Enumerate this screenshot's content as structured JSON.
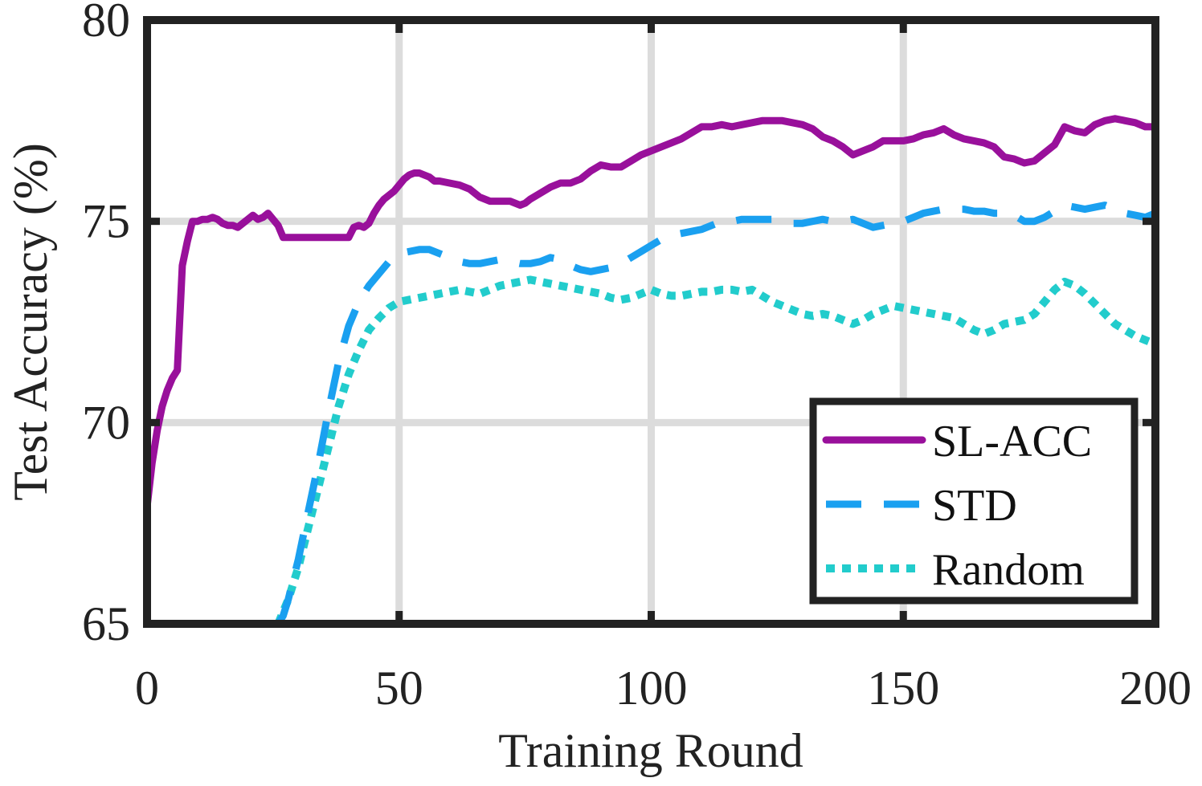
{
  "chart_data": {
    "type": "line",
    "title": "",
    "xlabel": "Training Round",
    "ylabel": "Test Accuracy (%)",
    "xlim": [
      0,
      200
    ],
    "ylim": [
      65,
      80
    ],
    "xticks": [
      0,
      50,
      100,
      150,
      200
    ],
    "yticks": [
      65,
      70,
      75,
      80
    ],
    "xtick_labels": [
      "0",
      "50",
      "100",
      "150",
      "200"
    ],
    "ytick_labels": [
      "65",
      "70",
      "75",
      "80"
    ],
    "grid": true,
    "legend_position": "bottom-right",
    "series": [
      {
        "name": "SL-ACC",
        "color": "#99109b",
        "style": "solid",
        "x": [
          0,
          1,
          2,
          3,
          4,
          5,
          6,
          7,
          8,
          9,
          10,
          11,
          12,
          13,
          14,
          15,
          16,
          17,
          18,
          19,
          20,
          21,
          22,
          23,
          24,
          25,
          26,
          27,
          28,
          29,
          30,
          32,
          34,
          36,
          38,
          40,
          41,
          42,
          43,
          44,
          45,
          46,
          47,
          48,
          49,
          50,
          51,
          52,
          53,
          54,
          55,
          56,
          57,
          58,
          60,
          62,
          64,
          66,
          68,
          70,
          72,
          74,
          75,
          76,
          78,
          80,
          82,
          84,
          86,
          88,
          90,
          92,
          94,
          96,
          98,
          100,
          102,
          104,
          106,
          108,
          110,
          112,
          114,
          116,
          118,
          120,
          122,
          124,
          126,
          128,
          130,
          132,
          134,
          136,
          138,
          140,
          142,
          144,
          146,
          148,
          150,
          152,
          154,
          156,
          158,
          160,
          162,
          164,
          166,
          168,
          170,
          172,
          174,
          176,
          178,
          180,
          182,
          184,
          186,
          188,
          190,
          192,
          194,
          196,
          198,
          200
        ],
        "values": [
          67.9,
          69.0,
          69.8,
          70.4,
          70.8,
          71.1,
          71.3,
          73.9,
          74.5,
          75.0,
          75.0,
          75.05,
          75.05,
          75.1,
          75.05,
          74.95,
          74.9,
          74.9,
          74.85,
          74.95,
          75.05,
          75.15,
          75.05,
          75.1,
          75.2,
          75.05,
          74.9,
          74.6,
          74.6,
          74.6,
          74.6,
          74.6,
          74.6,
          74.6,
          74.6,
          74.6,
          74.85,
          74.9,
          74.85,
          74.95,
          75.2,
          75.4,
          75.55,
          75.65,
          75.75,
          75.9,
          76.05,
          76.15,
          76.2,
          76.2,
          76.15,
          76.1,
          76.0,
          76.0,
          75.95,
          75.9,
          75.8,
          75.6,
          75.5,
          75.5,
          75.5,
          75.4,
          75.45,
          75.55,
          75.7,
          75.85,
          75.95,
          75.95,
          76.05,
          76.25,
          76.4,
          76.35,
          76.35,
          76.5,
          76.65,
          76.75,
          76.85,
          76.95,
          77.05,
          77.2,
          77.35,
          77.35,
          77.4,
          77.35,
          77.4,
          77.45,
          77.5,
          77.5,
          77.5,
          77.45,
          77.4,
          77.3,
          77.1,
          77.0,
          76.85,
          76.65,
          76.75,
          76.85,
          77.0,
          77.0,
          77.0,
          77.05,
          77.15,
          77.2,
          77.3,
          77.15,
          77.05,
          77.0,
          76.95,
          76.85,
          76.6,
          76.55,
          76.45,
          76.5,
          76.7,
          76.9,
          77.35,
          77.25,
          77.2,
          77.4,
          77.5,
          77.55,
          77.5,
          77.45,
          77.35,
          77.35
        ]
      },
      {
        "name": "STD",
        "color": "#1aa0f0",
        "style": "dashed",
        "x": [
          26,
          27,
          28,
          30,
          32,
          34,
          36,
          38,
          40,
          42,
          44,
          46,
          48,
          50,
          52,
          54,
          56,
          58,
          60,
          62,
          64,
          66,
          68,
          70,
          72,
          74,
          76,
          78,
          80,
          82,
          84,
          86,
          88,
          90,
          92,
          94,
          96,
          98,
          100,
          102,
          104,
          106,
          108,
          110,
          112,
          114,
          116,
          118,
          120,
          122,
          124,
          126,
          128,
          130,
          132,
          134,
          136,
          138,
          140,
          142,
          144,
          146,
          148,
          150,
          152,
          154,
          156,
          158,
          160,
          162,
          164,
          166,
          168,
          170,
          172,
          174,
          176,
          178,
          180,
          182,
          184,
          186,
          188,
          190,
          192,
          194,
          196,
          198,
          200
        ],
        "values": [
          65.0,
          65.2,
          65.6,
          66.6,
          67.8,
          69.0,
          70.3,
          71.5,
          72.4,
          73.0,
          73.4,
          73.7,
          74.0,
          74.2,
          74.25,
          74.3,
          74.3,
          74.2,
          74.1,
          74.0,
          73.95,
          73.95,
          74.0,
          74.05,
          74.0,
          73.95,
          73.95,
          74.0,
          74.1,
          74.05,
          73.9,
          73.8,
          73.75,
          73.8,
          73.85,
          73.95,
          74.1,
          74.25,
          74.4,
          74.55,
          74.65,
          74.7,
          74.75,
          74.8,
          74.9,
          75.0,
          75.0,
          75.05,
          75.05,
          75.05,
          75.05,
          75.0,
          74.95,
          74.95,
          75.0,
          75.05,
          75.0,
          75.0,
          75.05,
          74.95,
          74.85,
          74.9,
          74.95,
          75.0,
          75.1,
          75.2,
          75.25,
          75.3,
          75.3,
          75.3,
          75.25,
          75.25,
          75.2,
          75.2,
          75.15,
          75.0,
          75.0,
          75.1,
          75.25,
          75.4,
          75.35,
          75.3,
          75.35,
          75.4,
          75.3,
          75.2,
          75.15,
          75.1,
          75.2
        ]
      },
      {
        "name": "Random",
        "color": "#22cccc",
        "style": "dotted",
        "x": [
          26,
          27,
          28,
          30,
          32,
          34,
          36,
          38,
          40,
          42,
          44,
          46,
          48,
          50,
          52,
          54,
          56,
          58,
          60,
          62,
          64,
          66,
          68,
          70,
          72,
          74,
          76,
          78,
          80,
          82,
          84,
          86,
          88,
          90,
          92,
          94,
          96,
          98,
          100,
          102,
          104,
          106,
          108,
          110,
          112,
          114,
          116,
          118,
          120,
          122,
          124,
          126,
          128,
          130,
          132,
          134,
          136,
          138,
          140,
          142,
          144,
          146,
          148,
          150,
          152,
          154,
          156,
          158,
          160,
          162,
          164,
          166,
          168,
          170,
          172,
          174,
          176,
          178,
          180,
          182,
          184,
          186,
          188,
          190,
          192,
          194,
          196,
          198,
          200
        ],
        "values": [
          65.0,
          65.3,
          65.6,
          66.4,
          67.4,
          68.4,
          69.4,
          70.4,
          71.2,
          71.8,
          72.3,
          72.6,
          72.85,
          73.0,
          73.05,
          73.1,
          73.15,
          73.2,
          73.25,
          73.3,
          73.25,
          73.2,
          73.3,
          73.4,
          73.45,
          73.5,
          73.55,
          73.5,
          73.45,
          73.4,
          73.35,
          73.3,
          73.25,
          73.2,
          73.1,
          73.05,
          73.1,
          73.2,
          73.3,
          73.2,
          73.15,
          73.15,
          73.2,
          73.25,
          73.25,
          73.3,
          73.3,
          73.25,
          73.3,
          73.15,
          73.0,
          72.9,
          72.8,
          72.7,
          72.65,
          72.7,
          72.65,
          72.55,
          72.45,
          72.55,
          72.7,
          72.8,
          72.9,
          72.85,
          72.8,
          72.75,
          72.7,
          72.65,
          72.6,
          72.45,
          72.3,
          72.2,
          72.3,
          72.45,
          72.5,
          72.55,
          72.7,
          73.0,
          73.3,
          73.5,
          73.4,
          73.2,
          72.95,
          72.7,
          72.45,
          72.3,
          72.15,
          72.05,
          71.95
        ]
      }
    ]
  }
}
